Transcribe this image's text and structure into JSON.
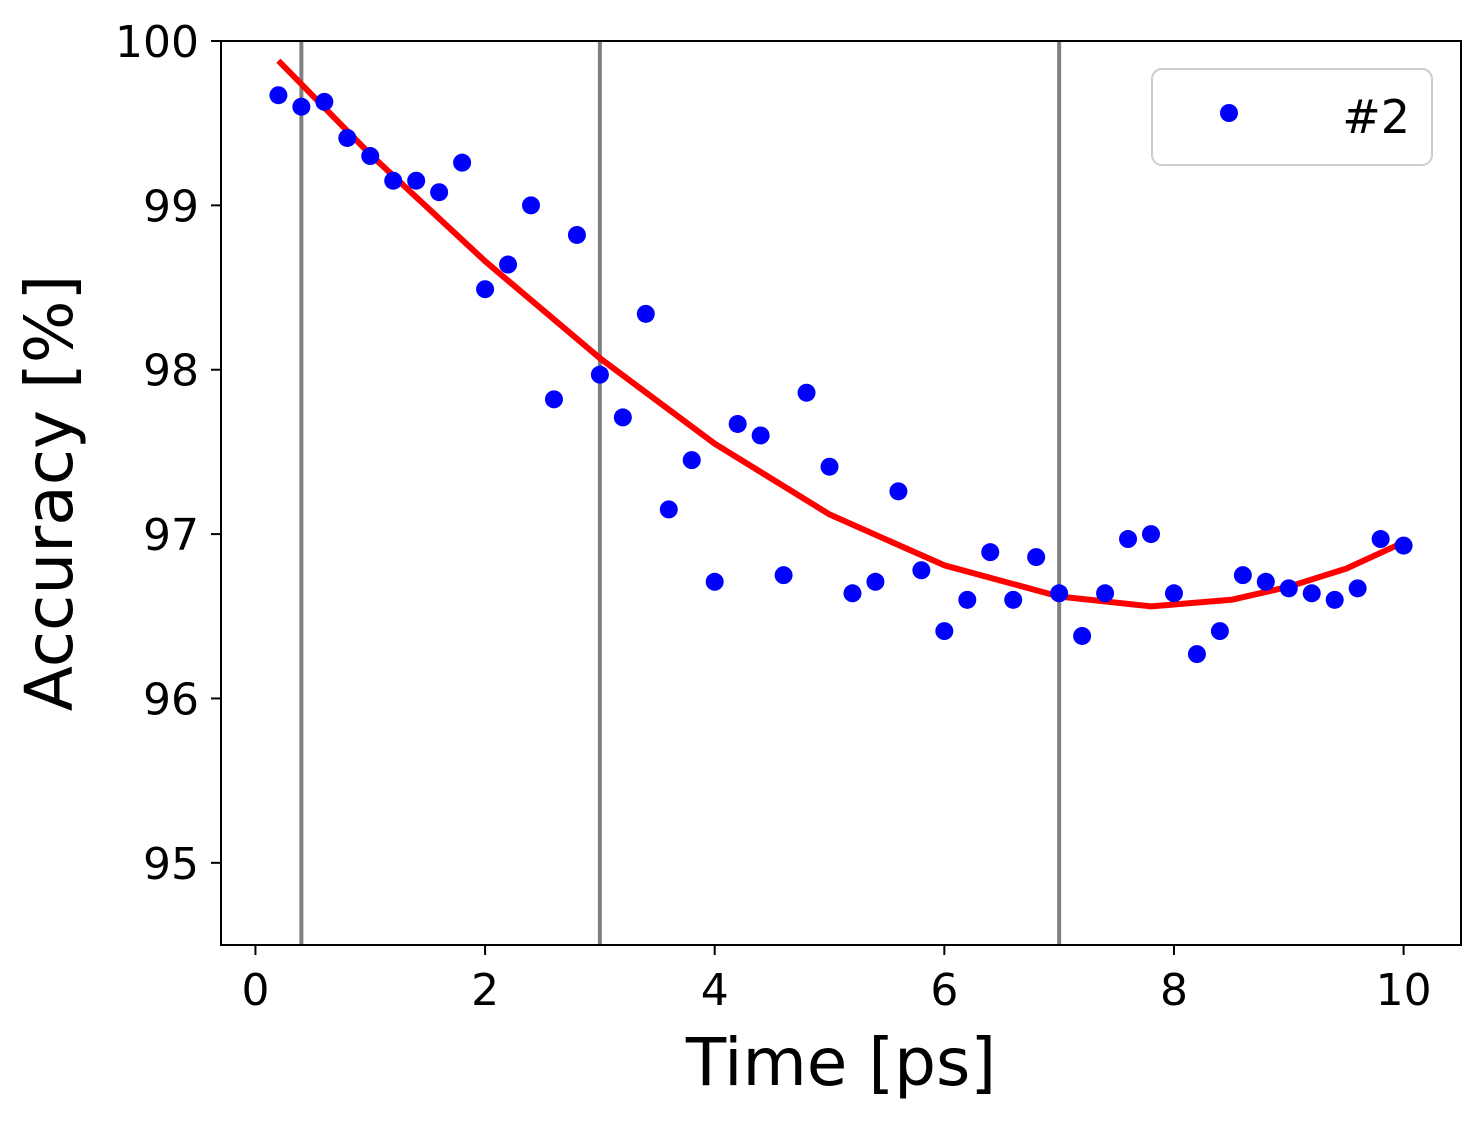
{
  "chart_data": {
    "type": "scatter",
    "xlabel": "Time [ps]",
    "ylabel": "Accuracy [%]",
    "xlim": [
      -0.3,
      10.5
    ],
    "ylim": [
      94.5,
      100
    ],
    "xticks": [
      0,
      2,
      4,
      6,
      8,
      10
    ],
    "yticks": [
      95,
      96,
      97,
      98,
      99,
      100
    ],
    "grid": false,
    "legend_position": "top-right",
    "vertical_lines": {
      "x": [
        0.4,
        3.0,
        7.0
      ],
      "color": "#808080"
    },
    "series": [
      {
        "name": "#2",
        "kind": "points",
        "color": "#0000ff",
        "x": [
          0.2,
          0.4,
          0.6,
          0.8,
          1.0,
          1.2,
          1.4,
          1.6,
          1.8,
          2.0,
          2.2,
          2.4,
          2.6,
          2.8,
          3.0,
          3.2,
          3.4,
          3.6,
          3.8,
          4.0,
          4.2,
          4.4,
          4.6,
          4.8,
          5.0,
          5.2,
          5.4,
          5.6,
          5.8,
          6.0,
          6.2,
          6.4,
          6.6,
          6.8,
          7.0,
          7.2,
          7.4,
          7.6,
          7.8,
          8.0,
          8.2,
          8.4,
          8.6,
          8.8,
          9.0,
          9.2,
          9.4,
          9.6,
          9.8,
          10.0
        ],
        "y": [
          99.67,
          99.6,
          99.63,
          99.41,
          99.3,
          99.15,
          99.15,
          99.08,
          99.26,
          98.49,
          98.64,
          99.0,
          97.82,
          98.82,
          97.97,
          97.71,
          98.34,
          97.15,
          97.45,
          96.71,
          97.67,
          97.6,
          96.75,
          97.86,
          97.41,
          96.64,
          96.71,
          97.26,
          96.78,
          96.41,
          96.6,
          96.89,
          96.6,
          96.86,
          96.64,
          96.38,
          96.64,
          96.97,
          97.0,
          96.64,
          96.27,
          96.41,
          96.75,
          96.71,
          96.67,
          96.64,
          96.6,
          96.67,
          96.97,
          96.93
        ]
      },
      {
        "kind": "fit-line",
        "color": "#ff0000",
        "x": [
          0.2,
          1.0,
          2.0,
          3.0,
          4.0,
          5.0,
          6.0,
          7.0,
          7.8,
          8.5,
          9.0,
          9.5,
          10.0
        ],
        "y": [
          99.88,
          99.31,
          98.66,
          98.07,
          97.55,
          97.12,
          96.81,
          96.62,
          96.56,
          96.6,
          96.68,
          96.79,
          96.95
        ]
      }
    ]
  }
}
